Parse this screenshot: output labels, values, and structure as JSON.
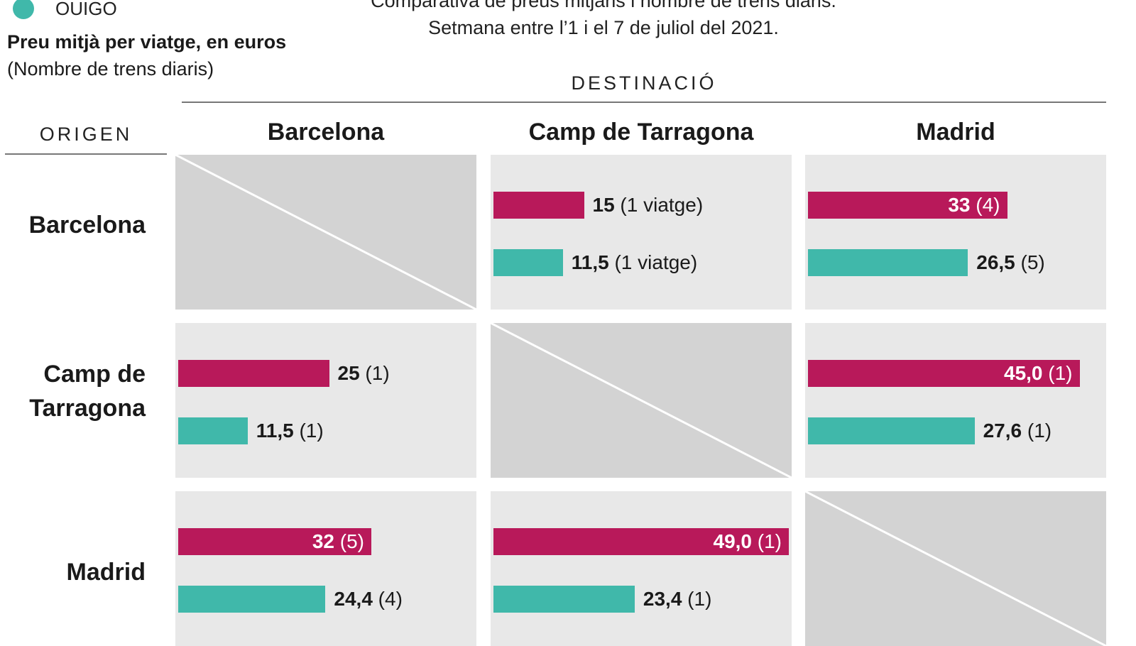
{
  "legend": {
    "items": [
      {
        "name": "OUIGO",
        "color": "#40b8aa"
      }
    ]
  },
  "measure": {
    "title": "Preu mitjà per viatge, en euros",
    "subtitle": "(Nombre de trens diaris)"
  },
  "subtitle_lines": [
    "Comparativa de preus mitjans i nombre de trens diaris.",
    "Setmana entre l’1 i el 7 de juliol del 2021."
  ],
  "axes": {
    "destination_label": "DESTINACIÓ",
    "origin_label": "ORIGEN",
    "destinations": [
      "Barcelona",
      "Camp de Tarragona",
      "Madrid"
    ],
    "origins": [
      "Barcelona",
      "Camp de Tarragona",
      "Madrid"
    ]
  },
  "chart_data": {
    "type": "bar",
    "layout": "matrix",
    "value_max": 50,
    "colors": {
      "renfe": "#b8195a",
      "ouigo": "#40b8aa"
    },
    "cells": [
      {
        "origin": "Barcelona",
        "destination": "Barcelona",
        "empty": true
      },
      {
        "origin": "Barcelona",
        "destination": "Camp de Tarragona",
        "bars": [
          {
            "series": "renfe",
            "value": 15,
            "value_label": "15",
            "trains_label": "(1 viatge)"
          },
          {
            "series": "ouigo",
            "value": 11.5,
            "value_label": "11,5",
            "trains_label": "(1 viatge)"
          }
        ]
      },
      {
        "origin": "Barcelona",
        "destination": "Madrid",
        "bars": [
          {
            "series": "renfe",
            "value": 33,
            "value_label": "33",
            "trains_label": "(4)"
          },
          {
            "series": "ouigo",
            "value": 26.5,
            "value_label": "26,5",
            "trains_label": "(5)"
          }
        ]
      },
      {
        "origin": "Camp de Tarragona",
        "destination": "Barcelona",
        "bars": [
          {
            "series": "renfe",
            "value": 25,
            "value_label": "25",
            "trains_label": "(1)"
          },
          {
            "series": "ouigo",
            "value": 11.5,
            "value_label": "11,5",
            "trains_label": "(1)"
          }
        ]
      },
      {
        "origin": "Camp de Tarragona",
        "destination": "Camp de Tarragona",
        "empty": true
      },
      {
        "origin": "Camp de Tarragona",
        "destination": "Madrid",
        "bars": [
          {
            "series": "renfe",
            "value": 45.0,
            "value_label": "45,0",
            "trains_label": "(1)"
          },
          {
            "series": "ouigo",
            "value": 27.6,
            "value_label": "27,6",
            "trains_label": "(1)"
          }
        ]
      },
      {
        "origin": "Madrid",
        "destination": "Barcelona",
        "bars": [
          {
            "series": "renfe",
            "value": 32,
            "value_label": "32",
            "trains_label": "(5)"
          },
          {
            "series": "ouigo",
            "value": 24.4,
            "value_label": "24,4",
            "trains_label": "(4)"
          }
        ]
      },
      {
        "origin": "Madrid",
        "destination": "Camp de Tarragona",
        "bars": [
          {
            "series": "renfe",
            "value": 49.0,
            "value_label": "49,0",
            "trains_label": "(1)"
          },
          {
            "series": "ouigo",
            "value": 23.4,
            "value_label": "23,4",
            "trains_label": "(1)"
          }
        ]
      },
      {
        "origin": "Madrid",
        "destination": "Madrid",
        "empty": true
      }
    ]
  }
}
